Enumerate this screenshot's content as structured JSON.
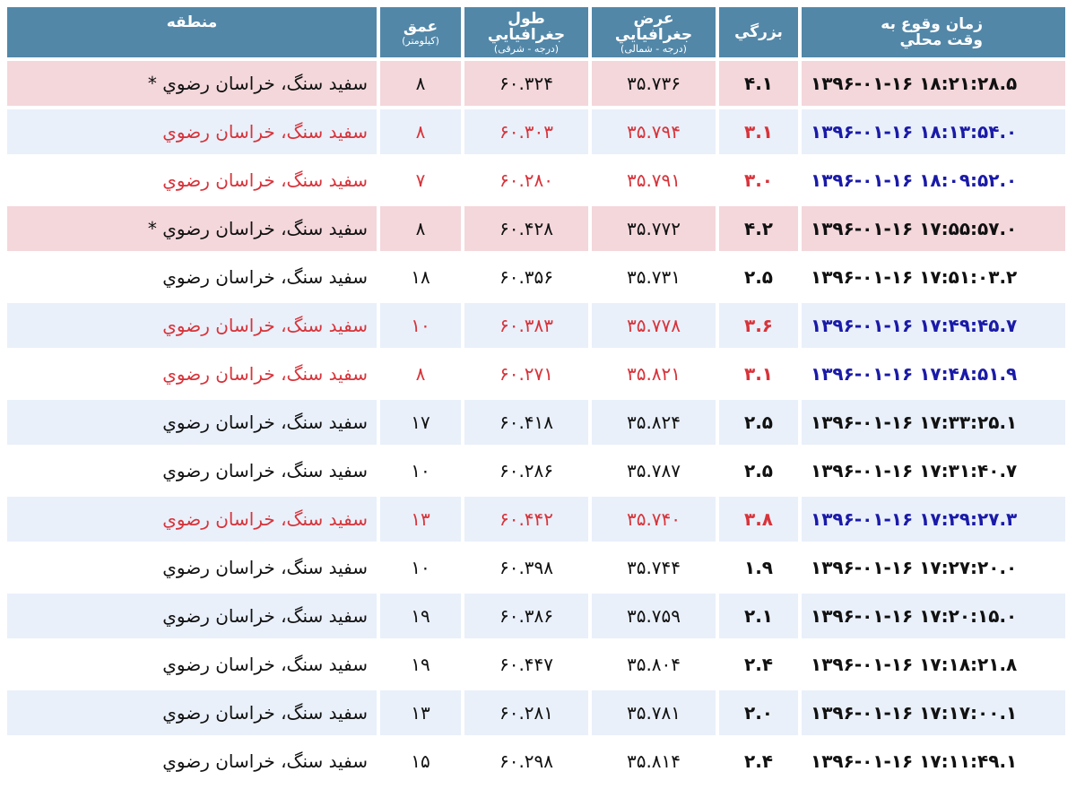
{
  "table": {
    "headers": {
      "region": "منطقه",
      "depth": "عمق",
      "depth_unit": "(کیلومتر)",
      "longitude": "طول جغرافيايي",
      "longitude_unit": "(درجه - شرقی)",
      "latitude": "عرض جغرافيايي",
      "latitude_unit": "(درجه - شمالی)",
      "magnitude": "بزرگي",
      "time": "زمان وقوع به",
      "time_sub": "وقت محلي"
    },
    "rows": [
      {
        "region": "سفيد سنگ، خراسان رضوي *",
        "depth": "۸",
        "longitude": "۶۰.۳۲۴",
        "latitude": "۳۵.۷۳۶",
        "magnitude": "۴.۱",
        "time": "۱۳۹۶-۰۱-۱۶ ۱۸:۲۱:۲۸.۵"
      },
      {
        "region": "سفيد سنگ، خراسان رضوي",
        "depth": "۸",
        "longitude": "۶۰.۳۰۳",
        "latitude": "۳۵.۷۹۴",
        "magnitude": "۳.۱",
        "time": "۱۳۹۶-۰۱-۱۶ ۱۸:۱۳:۵۴.۰"
      },
      {
        "region": "سفيد سنگ، خراسان رضوي",
        "depth": "۷",
        "longitude": "۶۰.۲۸۰",
        "latitude": "۳۵.۷۹۱",
        "magnitude": "۳.۰",
        "time": "۱۳۹۶-۰۱-۱۶ ۱۸:۰۹:۵۲.۰"
      },
      {
        "region": "سفيد سنگ، خراسان رضوي *",
        "depth": "۸",
        "longitude": "۶۰.۴۲۸",
        "latitude": "۳۵.۷۷۲",
        "magnitude": "۴.۲",
        "time": "۱۳۹۶-۰۱-۱۶ ۱۷:۵۵:۵۷.۰"
      },
      {
        "region": "سفيد سنگ، خراسان رضوي",
        "depth": "۱۸",
        "longitude": "۶۰.۳۵۶",
        "latitude": "۳۵.۷۳۱",
        "magnitude": "۲.۵",
        "time": "۱۳۹۶-۰۱-۱۶ ۱۷:۵۱:۰۳.۲"
      },
      {
        "region": "سفيد سنگ، خراسان رضوي",
        "depth": "۱۰",
        "longitude": "۶۰.۳۸۳",
        "latitude": "۳۵.۷۷۸",
        "magnitude": "۳.۶",
        "time": "۱۳۹۶-۰۱-۱۶ ۱۷:۴۹:۴۵.۷"
      },
      {
        "region": "سفيد سنگ، خراسان رضوي",
        "depth": "۸",
        "longitude": "۶۰.۲۷۱",
        "latitude": "۳۵.۸۲۱",
        "magnitude": "۳.۱",
        "time": "۱۳۹۶-۰۱-۱۶ ۱۷:۴۸:۵۱.۹"
      },
      {
        "region": "سفيد سنگ، خراسان رضوي",
        "depth": "۱۷",
        "longitude": "۶۰.۴۱۸",
        "latitude": "۳۵.۸۲۴",
        "magnitude": "۲.۵",
        "time": "۱۳۹۶-۰۱-۱۶ ۱۷:۳۳:۲۵.۱"
      },
      {
        "region": "سفيد سنگ، خراسان رضوي",
        "depth": "۱۰",
        "longitude": "۶۰.۲۸۶",
        "latitude": "۳۵.۷۸۷",
        "magnitude": "۲.۵",
        "time": "۱۳۹۶-۰۱-۱۶ ۱۷:۳۱:۴۰.۷"
      },
      {
        "region": "سفيد سنگ، خراسان رضوي",
        "depth": "۱۳",
        "longitude": "۶۰.۴۴۲",
        "latitude": "۳۵.۷۴۰",
        "magnitude": "۳.۸",
        "time": "۱۳۹۶-۰۱-۱۶ ۱۷:۲۹:۲۷.۳"
      },
      {
        "region": "سفيد سنگ، خراسان رضوي",
        "depth": "۱۰",
        "longitude": "۶۰.۳۹۸",
        "latitude": "۳۵.۷۴۴",
        "magnitude": "۱.۹",
        "time": "۱۳۹۶-۰۱-۱۶ ۱۷:۲۷:۲۰.۰"
      },
      {
        "region": "سفيد سنگ، خراسان رضوي",
        "depth": "۱۹",
        "longitude": "۶۰.۳۸۶",
        "latitude": "۳۵.۷۵۹",
        "magnitude": "۲.۱",
        "time": "۱۳۹۶-۰۱-۱۶ ۱۷:۲۰:۱۵.۰"
      },
      {
        "region": "سفيد سنگ، خراسان رضوي",
        "depth": "۱۹",
        "longitude": "۶۰.۴۴۷",
        "latitude": "۳۵.۸۰۴",
        "magnitude": "۲.۴",
        "time": "۱۳۹۶-۰۱-۱۶ ۱۷:۱۸:۲۱.۸"
      },
      {
        "region": "سفيد سنگ، خراسان رضوي",
        "depth": "۱۳",
        "longitude": "۶۰.۲۸۱",
        "latitude": "۳۵.۷۸۱",
        "magnitude": "۲.۰",
        "time": "۱۳۹۶-۰۱-۱۶ ۱۷:۱۷:۰۰.۱"
      },
      {
        "region": "سفيد سنگ، خراسان رضوي",
        "depth": "۱۵",
        "longitude": "۶۰.۲۹۸",
        "latitude": "۳۵.۸۱۴",
        "magnitude": "۲.۴",
        "time": "۱۳۹۶-۰۱-۱۶ ۱۷:۱۱:۴۹.۱"
      }
    ]
  },
  "colors": {
    "header_bg": "#5287a8",
    "major_row_bg": "#f4d7db",
    "alt_row_bg": "#e9f0fa",
    "highlight_text": "#d8333a",
    "time_text": "#1a1aa8"
  }
}
